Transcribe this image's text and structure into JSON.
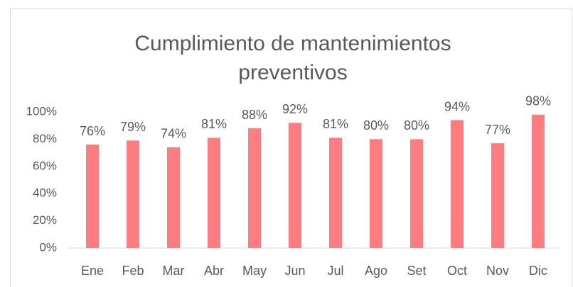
{
  "chart_data": {
    "type": "bar",
    "title": "Cumplimiento de mantenimientos preventivos",
    "categories": [
      "Ene",
      "Feb",
      "Mar",
      "Abr",
      "May",
      "Jun",
      "Jul",
      "Ago",
      "Set",
      "Oct",
      "Nov",
      "Dic"
    ],
    "values": [
      76,
      79,
      74,
      81,
      88,
      92,
      81,
      80,
      80,
      94,
      77,
      98
    ],
    "value_labels": [
      "76%",
      "79%",
      "74%",
      "81%",
      "88%",
      "92%",
      "81%",
      "80%",
      "80%",
      "94%",
      "77%",
      "98%"
    ],
    "color": "#ff7c80",
    "ylim": [
      0,
      100
    ],
    "yticks": [
      {
        "value": 0,
        "label": "0%"
      },
      {
        "value": 20,
        "label": "20%"
      },
      {
        "value": 40,
        "label": "40%"
      },
      {
        "value": 60,
        "label": "60%"
      },
      {
        "value": 80,
        "label": "80%"
      },
      {
        "value": 100,
        "label": "100%"
      }
    ],
    "grid": false
  }
}
